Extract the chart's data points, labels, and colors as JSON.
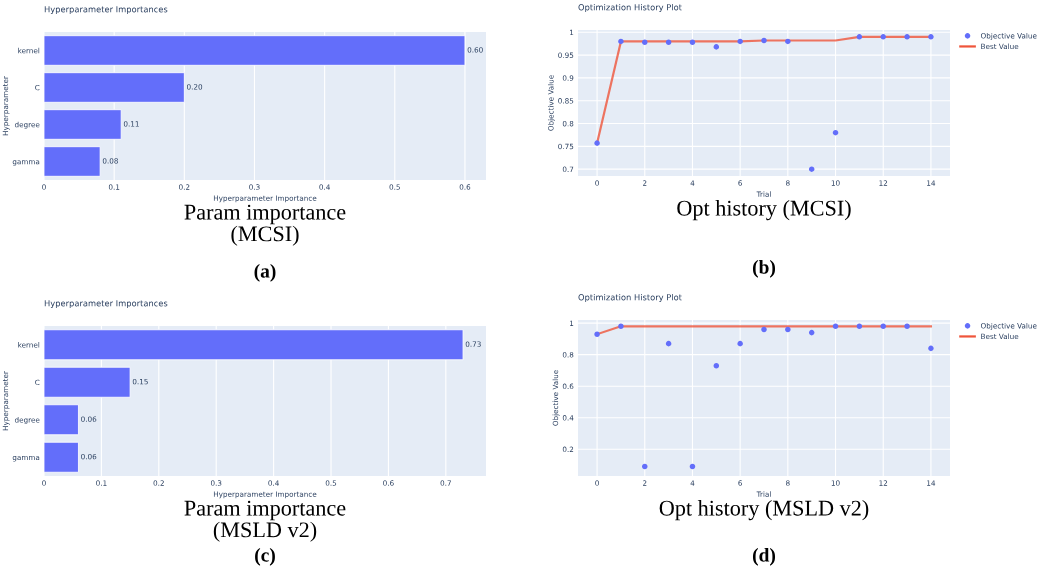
{
  "chart_data": [
    {
      "type": "bar",
      "orientation": "horizontal",
      "title": "Hyperparameter Importances",
      "xlabel": "Hyperparameter Importance",
      "ylabel": "Hyperparameter",
      "categories": [
        "kernel",
        "C",
        "degree",
        "gamma"
      ],
      "values": [
        0.6,
        0.2,
        0.11,
        0.08
      ],
      "value_labels": [
        "0.60",
        "0.20",
        "0.11",
        "0.08"
      ],
      "color": "#636efa",
      "xlim": [
        0,
        0.63
      ],
      "xticks": [
        0,
        0.1,
        0.2,
        0.3,
        0.4,
        0.5,
        0.6
      ],
      "grid": "x",
      "legend": false,
      "annotations": [
        "Param importance\n(MCSI)",
        "(a)"
      ]
    },
    {
      "type": "line",
      "title": "Optimization History Plot",
      "xlabel": "Trial",
      "ylabel": "Objective Value",
      "x": [
        0,
        1,
        2,
        3,
        4,
        5,
        6,
        7,
        8,
        9,
        10,
        11,
        12,
        13,
        14
      ],
      "series": [
        {
          "name": "Objective Value",
          "type": "scatter",
          "marker": "circle",
          "color": "#636efa",
          "values": [
            0.757,
            0.98,
            0.978,
            0.978,
            0.978,
            0.968,
            0.98,
            0.982,
            0.98,
            0.7,
            0.78,
            0.99,
            0.99,
            0.99,
            0.99
          ]
        },
        {
          "name": "Best Value",
          "type": "line",
          "color": "#ef553b",
          "values": [
            0.757,
            0.98,
            0.98,
            0.98,
            0.98,
            0.98,
            0.98,
            0.982,
            0.982,
            0.982,
            0.982,
            0.99,
            0.99,
            0.99,
            0.99
          ]
        }
      ],
      "xlim": [
        -0.8,
        14.8
      ],
      "xticks": [
        0,
        2,
        4,
        6,
        8,
        10,
        12,
        14
      ],
      "ylim": [
        0.685,
        1.005
      ],
      "yticks": [
        0.7,
        0.75,
        0.8,
        0.85,
        0.9,
        0.95,
        1
      ],
      "grid": true,
      "legend": "right",
      "annotations": [
        "Opt history (MCSI)",
        "(b)"
      ]
    },
    {
      "type": "bar",
      "orientation": "horizontal",
      "title": "Hyperparameter Importances",
      "xlabel": "Hyperparameter Importance",
      "ylabel": "Hyperparameter",
      "categories": [
        "kernel",
        "C",
        "degree",
        "gamma"
      ],
      "values": [
        0.73,
        0.15,
        0.06,
        0.06
      ],
      "value_labels": [
        "0.73",
        "0.15",
        "0.06",
        "0.06"
      ],
      "color": "#636efa",
      "xlim": [
        0,
        0.77
      ],
      "xticks": [
        0,
        0.1,
        0.2,
        0.3,
        0.4,
        0.5,
        0.6,
        0.7
      ],
      "grid": "x",
      "legend": false,
      "annotations": [
        "Param importance\n(MSLD v2)",
        "(c)"
      ]
    },
    {
      "type": "line",
      "title": "Optimization History Plot",
      "xlabel": "Trial",
      "ylabel": "Objective Value",
      "x": [
        0,
        1,
        2,
        3,
        4,
        5,
        6,
        7,
        8,
        9,
        10,
        11,
        12,
        13,
        14
      ],
      "series": [
        {
          "name": "Objective Value",
          "type": "scatter",
          "marker": "circle",
          "color": "#636efa",
          "values": [
            0.93,
            0.98,
            0.09,
            0.87,
            0.09,
            0.73,
            0.87,
            0.96,
            0.96,
            0.94,
            0.98,
            0.98,
            0.98,
            0.98,
            0.84
          ]
        },
        {
          "name": "Best Value",
          "type": "line",
          "color": "#ef553b",
          "values": [
            0.93,
            0.98,
            0.98,
            0.98,
            0.98,
            0.98,
            0.98,
            0.98,
            0.98,
            0.98,
            0.98,
            0.98,
            0.98,
            0.98,
            0.98
          ]
        }
      ],
      "xlim": [
        -0.8,
        14.8
      ],
      "xticks": [
        0,
        2,
        4,
        6,
        8,
        10,
        12,
        14
      ],
      "ylim": [
        0.03,
        1.02
      ],
      "yticks": [
        0.2,
        0.4,
        0.6,
        0.8,
        1
      ],
      "grid": true,
      "legend": "right",
      "annotations": [
        "Opt history (MSLD v2)",
        "(d)"
      ]
    }
  ]
}
